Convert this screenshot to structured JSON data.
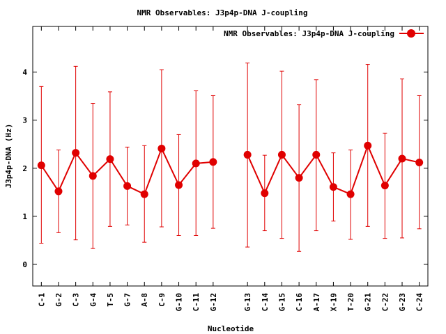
{
  "chart_data": {
    "type": "line",
    "title": "NMR Observables: J3p4p-DNA J-coupling",
    "xlabel": "Nucleotide",
    "ylabel": "J3p4p-DNA (Hz)",
    "ylim": [
      -0.45,
      4.95
    ],
    "yticks": [
      0,
      1,
      2,
      3,
      4
    ],
    "grid": false,
    "legend_position": "top-right",
    "series": [
      {
        "name": "NMR Observables: J3p4p-DNA J-coupling",
        "color": "#e00000",
        "points": [
          {
            "x": 1,
            "label": "C-1",
            "y": 2.06,
            "low": 0.44,
            "high": 3.7
          },
          {
            "x": 2,
            "label": "G-2",
            "y": 1.52,
            "low": 0.66,
            "high": 2.38
          },
          {
            "x": 3,
            "label": "C-3",
            "y": 2.32,
            "low": 0.51,
            "high": 4.12
          },
          {
            "x": 4,
            "label": "G-4",
            "y": 1.84,
            "low": 0.33,
            "high": 3.35
          },
          {
            "x": 5,
            "label": "T-5",
            "y": 2.19,
            "low": 0.79,
            "high": 3.59
          },
          {
            "x": 6,
            "label": "G-7",
            "y": 1.63,
            "low": 0.82,
            "high": 2.44
          },
          {
            "x": 7,
            "label": "A-8",
            "y": 1.46,
            "low": 0.46,
            "high": 2.47
          },
          {
            "x": 8,
            "label": "C-9",
            "y": 2.41,
            "low": 0.78,
            "high": 4.05
          },
          {
            "x": 9,
            "label": "G-10",
            "y": 1.65,
            "low": 0.6,
            "high": 2.7
          },
          {
            "x": 10,
            "label": "C-11",
            "y": 2.1,
            "low": 0.6,
            "high": 3.61
          },
          {
            "x": 11,
            "label": "G-12",
            "y": 2.13,
            "low": 0.75,
            "high": 3.51
          },
          {
            "x": 13,
            "label": "G-13",
            "y": 2.28,
            "low": 0.36,
            "high": 4.19
          },
          {
            "x": 14,
            "label": "C-14",
            "y": 1.48,
            "low": 0.7,
            "high": 2.27
          },
          {
            "x": 15,
            "label": "G-15",
            "y": 2.28,
            "low": 0.54,
            "high": 4.02
          },
          {
            "x": 16,
            "label": "C-16",
            "y": 1.8,
            "low": 0.27,
            "high": 3.32
          },
          {
            "x": 17,
            "label": "A-17",
            "y": 2.28,
            "low": 0.7,
            "high": 3.84
          },
          {
            "x": 18,
            "label": "X-19",
            "y": 1.61,
            "low": 0.9,
            "high": 2.32
          },
          {
            "x": 19,
            "label": "T-20",
            "y": 1.46,
            "low": 0.52,
            "high": 2.38
          },
          {
            "x": 20,
            "label": "G-21",
            "y": 2.47,
            "low": 0.79,
            "high": 4.16
          },
          {
            "x": 21,
            "label": "C-22",
            "y": 1.64,
            "low": 0.54,
            "high": 2.73
          },
          {
            "x": 22,
            "label": "G-23",
            "y": 2.2,
            "low": 0.55,
            "high": 3.86
          },
          {
            "x": 23,
            "label": "C-24",
            "y": 2.12,
            "low": 0.74,
            "high": 3.51
          }
        ]
      }
    ]
  }
}
